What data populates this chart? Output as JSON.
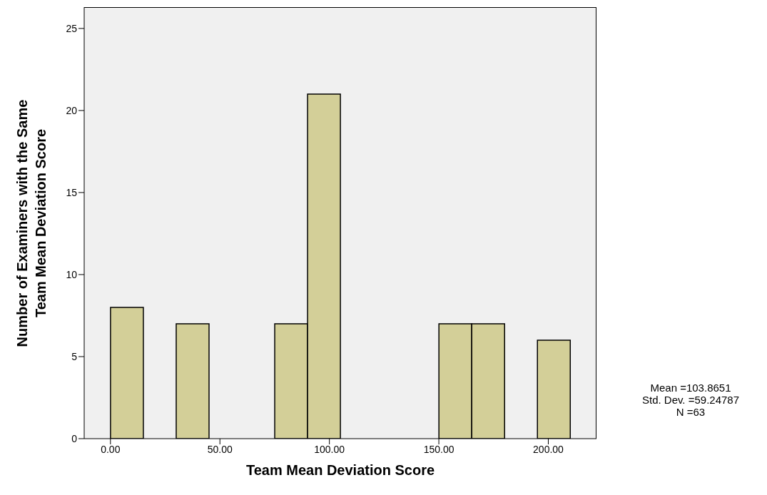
{
  "chart_data": {
    "type": "histogram",
    "xlabel": "Team Mean Deviation Score",
    "ylabel": "Number of Examiners with the Same Team Mean Deviation Score",
    "bins": [
      0,
      15,
      30,
      45,
      60,
      75,
      90,
      105,
      120,
      135,
      150,
      165,
      180,
      195,
      210
    ],
    "values": [
      8,
      0,
      7,
      0,
      0,
      7,
      21,
      0,
      0,
      0,
      7,
      7,
      0,
      6
    ],
    "color": "#d3cf98",
    "xlim": [
      -12,
      222
    ],
    "xticks": [
      {
        "value": 0,
        "label": "0.00"
      },
      {
        "value": 50,
        "label": "50.00"
      },
      {
        "value": 100,
        "label": "100.00"
      },
      {
        "value": 150,
        "label": "150.00"
      },
      {
        "value": 200,
        "label": "200.00"
      }
    ],
    "ylim": [
      0,
      26.3
    ],
    "yticks": [
      0,
      5,
      10,
      15,
      20,
      25
    ],
    "grid": false,
    "annotations": [
      "Mean =103.8651",
      "Std. Dev. =59.24787",
      "N =63"
    ]
  }
}
